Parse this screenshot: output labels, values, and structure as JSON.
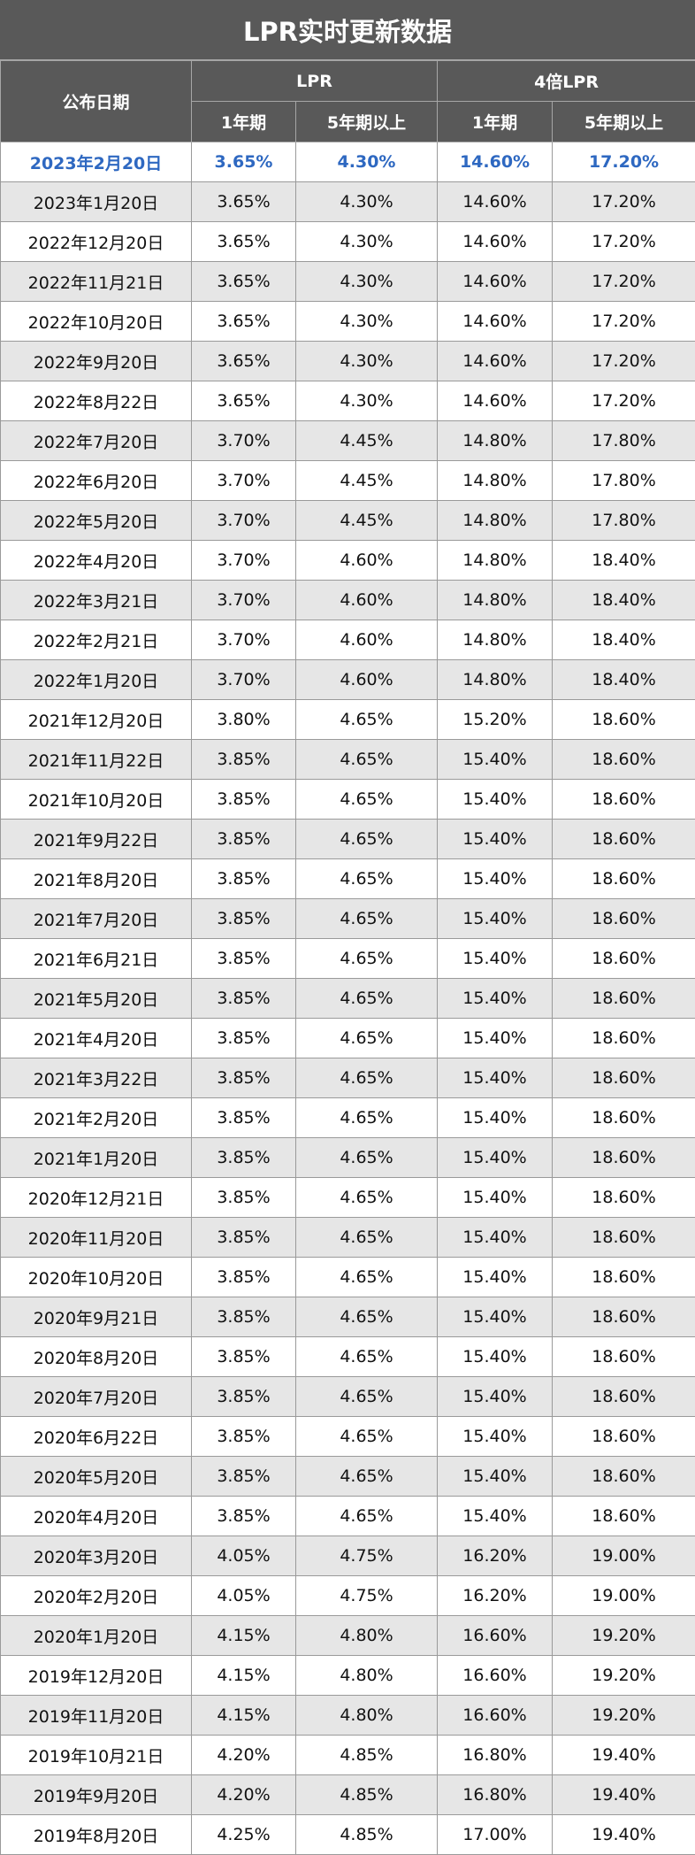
{
  "title": "LPR实时更新数据",
  "headers": {
    "date": "公布日期",
    "lpr_group": "LPR",
    "lpr4_group": "4倍LPR",
    "one_year": "1年期",
    "five_year": "5年期以上"
  },
  "colors": {
    "header_bg": "#595959",
    "latest_text": "#2e68c1",
    "stripe": "#e6e6e6"
  },
  "rows": [
    [
      "2023年2月20日",
      "3.65%",
      "4.30%",
      "14.60%",
      "17.20%"
    ],
    [
      "2023年1月20日",
      "3.65%",
      "4.30%",
      "14.60%",
      "17.20%"
    ],
    [
      "2022年12月20日",
      "3.65%",
      "4.30%",
      "14.60%",
      "17.20%"
    ],
    [
      "2022年11月21日",
      "3.65%",
      "4.30%",
      "14.60%",
      "17.20%"
    ],
    [
      "2022年10月20日",
      "3.65%",
      "4.30%",
      "14.60%",
      "17.20%"
    ],
    [
      "2022年9月20日",
      "3.65%",
      "4.30%",
      "14.60%",
      "17.20%"
    ],
    [
      "2022年8月22日",
      "3.65%",
      "4.30%",
      "14.60%",
      "17.20%"
    ],
    [
      "2022年7月20日",
      "3.70%",
      "4.45%",
      "14.80%",
      "17.80%"
    ],
    [
      "2022年6月20日",
      "3.70%",
      "4.45%",
      "14.80%",
      "17.80%"
    ],
    [
      "2022年5月20日",
      "3.70%",
      "4.45%",
      "14.80%",
      "17.80%"
    ],
    [
      "2022年4月20日",
      "3.70%",
      "4.60%",
      "14.80%",
      "18.40%"
    ],
    [
      "2022年3月21日",
      "3.70%",
      "4.60%",
      "14.80%",
      "18.40%"
    ],
    [
      "2022年2月21日",
      "3.70%",
      "4.60%",
      "14.80%",
      "18.40%"
    ],
    [
      "2022年1月20日",
      "3.70%",
      "4.60%",
      "14.80%",
      "18.40%"
    ],
    [
      "2021年12月20日",
      "3.80%",
      "4.65%",
      "15.20%",
      "18.60%"
    ],
    [
      "2021年11月22日",
      "3.85%",
      "4.65%",
      "15.40%",
      "18.60%"
    ],
    [
      "2021年10月20日",
      "3.85%",
      "4.65%",
      "15.40%",
      "18.60%"
    ],
    [
      "2021年9月22日",
      "3.85%",
      "4.65%",
      "15.40%",
      "18.60%"
    ],
    [
      "2021年8月20日",
      "3.85%",
      "4.65%",
      "15.40%",
      "18.60%"
    ],
    [
      "2021年7月20日",
      "3.85%",
      "4.65%",
      "15.40%",
      "18.60%"
    ],
    [
      "2021年6月21日",
      "3.85%",
      "4.65%",
      "15.40%",
      "18.60%"
    ],
    [
      "2021年5月20日",
      "3.85%",
      "4.65%",
      "15.40%",
      "18.60%"
    ],
    [
      "2021年4月20日",
      "3.85%",
      "4.65%",
      "15.40%",
      "18.60%"
    ],
    [
      "2021年3月22日",
      "3.85%",
      "4.65%",
      "15.40%",
      "18.60%"
    ],
    [
      "2021年2月20日",
      "3.85%",
      "4.65%",
      "15.40%",
      "18.60%"
    ],
    [
      "2021年1月20日",
      "3.85%",
      "4.65%",
      "15.40%",
      "18.60%"
    ],
    [
      "2020年12月21日",
      "3.85%",
      "4.65%",
      "15.40%",
      "18.60%"
    ],
    [
      "2020年11月20日",
      "3.85%",
      "4.65%",
      "15.40%",
      "18.60%"
    ],
    [
      "2020年10月20日",
      "3.85%",
      "4.65%",
      "15.40%",
      "18.60%"
    ],
    [
      "2020年9月21日",
      "3.85%",
      "4.65%",
      "15.40%",
      "18.60%"
    ],
    [
      "2020年8月20日",
      "3.85%",
      "4.65%",
      "15.40%",
      "18.60%"
    ],
    [
      "2020年7月20日",
      "3.85%",
      "4.65%",
      "15.40%",
      "18.60%"
    ],
    [
      "2020年6月22日",
      "3.85%",
      "4.65%",
      "15.40%",
      "18.60%"
    ],
    [
      "2020年5月20日",
      "3.85%",
      "4.65%",
      "15.40%",
      "18.60%"
    ],
    [
      "2020年4月20日",
      "3.85%",
      "4.65%",
      "15.40%",
      "18.60%"
    ],
    [
      "2020年3月20日",
      "4.05%",
      "4.75%",
      "16.20%",
      "19.00%"
    ],
    [
      "2020年2月20日",
      "4.05%",
      "4.75%",
      "16.20%",
      "19.00%"
    ],
    [
      "2020年1月20日",
      "4.15%",
      "4.80%",
      "16.60%",
      "19.20%"
    ],
    [
      "2019年12月20日",
      "4.15%",
      "4.80%",
      "16.60%",
      "19.20%"
    ],
    [
      "2019年11月20日",
      "4.15%",
      "4.80%",
      "16.60%",
      "19.20%"
    ],
    [
      "2019年10月21日",
      "4.20%",
      "4.85%",
      "16.80%",
      "19.40%"
    ],
    [
      "2019年9月20日",
      "4.20%",
      "4.85%",
      "16.80%",
      "19.40%"
    ],
    [
      "2019年8月20日",
      "4.25%",
      "4.85%",
      "17.00%",
      "19.40%"
    ]
  ]
}
